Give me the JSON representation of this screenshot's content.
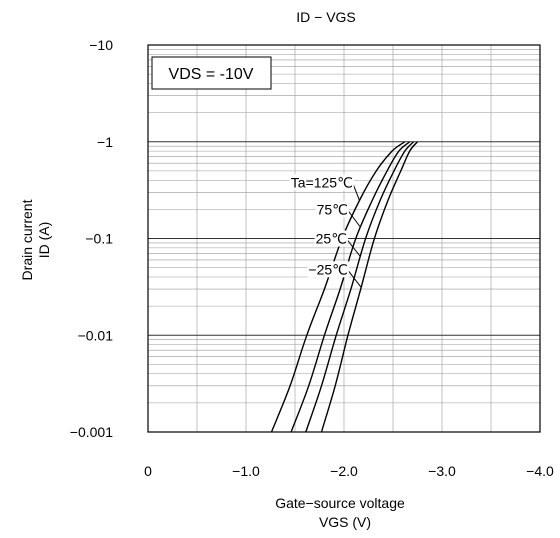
{
  "chart_data": {
    "type": "line",
    "title": "ID − VGS",
    "xlabel_line1": "Gate−source voltage",
    "xlabel_line2": "VGS (V)",
    "ylabel_line1": "Drain current",
    "ylabel_line2": "ID (A)",
    "annotation": "VDS = -10V",
    "x_scale": "linear",
    "y_scale": "log",
    "x_lim": [
      0,
      -4.0
    ],
    "y_lim": [
      -0.001,
      -10
    ],
    "x_ticks": [
      0,
      -1.0,
      -2.0,
      -3.0,
      -4.0
    ],
    "x_tick_labels": [
      "0",
      "−1.0",
      "−2.0",
      "−3.0",
      "−4.0"
    ],
    "y_ticks": [
      -10,
      -1,
      -0.1,
      -0.01,
      -0.001
    ],
    "y_tick_labels": [
      "−10",
      "−1",
      "−0.1",
      "−0.01",
      "−0.001"
    ],
    "grid": true,
    "series": [
      {
        "name": "Ta=125℃",
        "x": [
          -1.26,
          -1.45,
          -1.62,
          -1.8,
          -1.98,
          -2.16,
          -2.33,
          -2.49,
          -2.62
        ],
        "y": [
          -0.001,
          -0.003,
          -0.01,
          -0.03,
          -0.1,
          -0.25,
          -0.5,
          -0.8,
          -1
        ]
      },
      {
        "name": "75℃",
        "x": [
          -1.46,
          -1.64,
          -1.8,
          -1.96,
          -2.12,
          -2.29,
          -2.44,
          -2.56,
          -2.67
        ],
        "y": [
          -0.001,
          -0.003,
          -0.01,
          -0.03,
          -0.1,
          -0.25,
          -0.5,
          -0.8,
          -1
        ]
      },
      {
        "name": "25℃",
        "x": [
          -1.61,
          -1.77,
          -1.92,
          -2.07,
          -2.22,
          -2.37,
          -2.51,
          -2.62,
          -2.71
        ],
        "y": [
          -0.001,
          -0.003,
          -0.01,
          -0.03,
          -0.1,
          -0.25,
          -0.5,
          -0.8,
          -1
        ]
      },
      {
        "name": "−25℃",
        "x": [
          -1.77,
          -1.91,
          -2.04,
          -2.17,
          -2.31,
          -2.45,
          -2.58,
          -2.67,
          -2.75
        ],
        "y": [
          -0.001,
          -0.003,
          -0.01,
          -0.03,
          -0.1,
          -0.25,
          -0.5,
          -0.8,
          -1
        ]
      }
    ],
    "series_labels": [
      {
        "text": "Ta=125℃",
        "at_x": -2.09,
        "at_y": -0.38
      },
      {
        "text": "75℃",
        "at_x": -2.04,
        "at_y": -0.2
      },
      {
        "text": "25℃",
        "at_x": -2.03,
        "at_y": -0.1
      },
      {
        "text": "−25℃",
        "at_x": -2.04,
        "at_y": -0.048
      }
    ]
  }
}
